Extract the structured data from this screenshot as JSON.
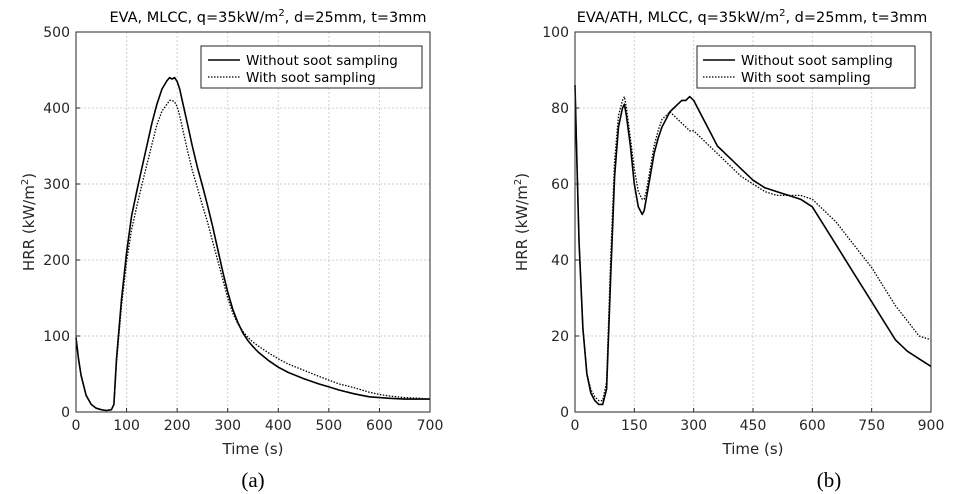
{
  "chart_data": [
    {
      "type": "line",
      "title": "EVA, MLCC, q=35kW/m",
      "title_sup": "2",
      "title_tail": ", d=25mm, t=3mm",
      "xlabel": "Time (s)",
      "ylabel": "HRR (kW/m",
      "ylabel_sup": "2",
      "ylabel_tail": ")",
      "caption": "(a)",
      "xlim": [
        0,
        700
      ],
      "ylim": [
        0,
        500
      ],
      "xticks": [
        0,
        100,
        200,
        300,
        400,
        500,
        600,
        700
      ],
      "yticks": [
        0,
        100,
        200,
        300,
        400,
        500
      ],
      "grid": true,
      "legend_position": "top-right",
      "series": [
        {
          "name": "Without soot sampling",
          "style": "solid",
          "x": [
            0,
            5,
            10,
            20,
            30,
            40,
            50,
            60,
            70,
            75,
            80,
            90,
            100,
            110,
            120,
            130,
            140,
            150,
            160,
            170,
            180,
            185,
            190,
            195,
            200,
            205,
            210,
            220,
            230,
            240,
            250,
            260,
            270,
            280,
            290,
            300,
            310,
            320,
            330,
            340,
            350,
            360,
            380,
            400,
            420,
            450,
            480,
            500,
            520,
            550,
            580,
            600,
            620,
            650,
            680,
            700
          ],
          "y": [
            98,
            70,
            48,
            22,
            10,
            5,
            3,
            2,
            3,
            10,
            70,
            148,
            210,
            258,
            290,
            320,
            350,
            380,
            405,
            425,
            436,
            440,
            438,
            440,
            435,
            425,
            410,
            380,
            350,
            322,
            298,
            272,
            245,
            215,
            185,
            158,
            135,
            118,
            104,
            94,
            86,
            79,
            68,
            59,
            52,
            44,
            37,
            33,
            29,
            24,
            20,
            19,
            18,
            17,
            17,
            17
          ]
        },
        {
          "name": "With soot sampling",
          "style": "dotted",
          "x": [
            0,
            5,
            10,
            20,
            30,
            40,
            50,
            60,
            70,
            75,
            80,
            90,
            100,
            110,
            120,
            130,
            140,
            150,
            160,
            170,
            180,
            185,
            190,
            195,
            200,
            205,
            210,
            220,
            230,
            240,
            250,
            260,
            270,
            280,
            290,
            300,
            310,
            320,
            330,
            340,
            350,
            360,
            380,
            400,
            420,
            450,
            480,
            500,
            520,
            550,
            580,
            600,
            620,
            650,
            680,
            700
          ],
          "y": [
            98,
            70,
            48,
            22,
            10,
            5,
            3,
            2,
            3,
            10,
            65,
            140,
            198,
            240,
            270,
            298,
            325,
            352,
            378,
            396,
            405,
            410,
            410,
            408,
            402,
            390,
            375,
            345,
            318,
            295,
            272,
            250,
            225,
            200,
            175,
            150,
            130,
            116,
            106,
            98,
            92,
            87,
            78,
            70,
            63,
            55,
            47,
            42,
            37,
            32,
            26,
            23,
            21,
            19,
            18,
            17
          ]
        }
      ]
    },
    {
      "type": "line",
      "title": "EVA/ATH, MLCC, q=35kW/m",
      "title_sup": "2",
      "title_tail": ", d=25mm, t=3mm",
      "xlabel": "Time (s)",
      "ylabel": "HRR (kW/m",
      "ylabel_sup": "2",
      "ylabel_tail": ")",
      "caption": "(b)",
      "xlim": [
        0,
        900
      ],
      "ylim": [
        0,
        100
      ],
      "xticks": [
        0,
        150,
        300,
        450,
        600,
        750,
        900
      ],
      "yticks": [
        0,
        20,
        40,
        60,
        80,
        100
      ],
      "grid": true,
      "legend_position": "top-right",
      "series": [
        {
          "name": "Without soot sampling",
          "style": "solid",
          "x": [
            0,
            5,
            10,
            20,
            30,
            40,
            50,
            60,
            70,
            80,
            90,
            100,
            110,
            120,
            125,
            130,
            140,
            150,
            160,
            170,
            175,
            180,
            190,
            200,
            210,
            220,
            230,
            240,
            250,
            260,
            270,
            280,
            290,
            300,
            320,
            340,
            360,
            380,
            400,
            420,
            450,
            480,
            510,
            540,
            570,
            600,
            630,
            660,
            690,
            720,
            750,
            780,
            810,
            840,
            870,
            900
          ],
          "y": [
            86,
            65,
            45,
            22,
            10,
            5,
            3,
            2,
            2,
            6,
            35,
            62,
            75,
            80,
            81,
            78,
            70,
            60,
            54,
            52,
            53,
            56,
            62,
            68,
            72,
            75,
            77,
            79,
            80,
            81,
            82,
            82,
            83,
            82,
            78,
            74,
            70,
            68,
            66,
            64,
            61,
            59,
            58,
            57,
            56,
            54,
            49,
            44,
            39,
            34,
            29,
            24,
            19,
            16,
            14,
            12
          ]
        },
        {
          "name": "With soot sampling",
          "style": "dotted",
          "x": [
            0,
            5,
            10,
            20,
            30,
            40,
            50,
            60,
            70,
            80,
            90,
            100,
            110,
            120,
            125,
            130,
            140,
            150,
            160,
            170,
            175,
            180,
            190,
            200,
            210,
            220,
            230,
            240,
            250,
            260,
            270,
            280,
            290,
            300,
            320,
            340,
            360,
            380,
            400,
            420,
            450,
            480,
            510,
            540,
            570,
            600,
            630,
            660,
            690,
            720,
            750,
            780,
            810,
            840,
            870,
            900
          ],
          "y": [
            86,
            65,
            45,
            22,
            10,
            6,
            4,
            3,
            3,
            8,
            40,
            66,
            78,
            82,
            83,
            80,
            72,
            64,
            58,
            56,
            56,
            58,
            64,
            70,
            74,
            77,
            78,
            79,
            78,
            77,
            76,
            75,
            74,
            74,
            72,
            70,
            68,
            66,
            64,
            62,
            60,
            58,
            57,
            57,
            57,
            56,
            53,
            50,
            46,
            42,
            38,
            33,
            28,
            24,
            20,
            19
          ]
        }
      ]
    }
  ]
}
